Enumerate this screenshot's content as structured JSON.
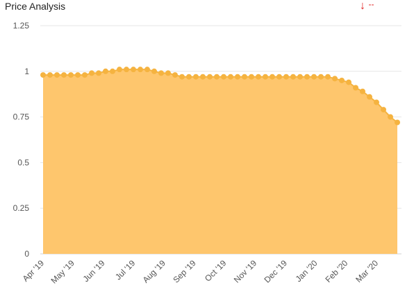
{
  "header": {
    "title": "Price Analysis",
    "trend_arrow": "↓",
    "trend_value": "--"
  },
  "chart_data": {
    "type": "area",
    "title": "Price Analysis",
    "xlabel": "",
    "ylabel": "",
    "ylim": [
      0,
      1.25
    ],
    "yticks": [
      "0",
      "0.25",
      "0.5",
      "0.75",
      "1",
      "1.25"
    ],
    "xtick_labels": [
      "Apr '19",
      "May '19",
      "Jun '19",
      "Jul '19",
      "Aug '19",
      "Sep '19",
      "Oct '19",
      "Nov '19",
      "Dec '19",
      "Jan '20",
      "Feb '20",
      "Mar '20"
    ],
    "grid": true,
    "colors": {
      "fill": "#fec66d",
      "line": "#f5b340",
      "marker": "#f5b340"
    },
    "series": [
      {
        "values": [
          0.98,
          0.98,
          0.98,
          0.98,
          0.98,
          0.98,
          0.98,
          0.99,
          0.99,
          1.0,
          1.0,
          1.01,
          1.01,
          1.01,
          1.01,
          1.01,
          1.0,
          0.99,
          0.99,
          0.98,
          0.97,
          0.97,
          0.97,
          0.97,
          0.97,
          0.97,
          0.97,
          0.97,
          0.97,
          0.97,
          0.97,
          0.97,
          0.97,
          0.97,
          0.97,
          0.97,
          0.97,
          0.97,
          0.97,
          0.97,
          0.97,
          0.97,
          0.96,
          0.95,
          0.94,
          0.91,
          0.89,
          0.86,
          0.83,
          0.79,
          0.75,
          0.72
        ]
      }
    ]
  }
}
